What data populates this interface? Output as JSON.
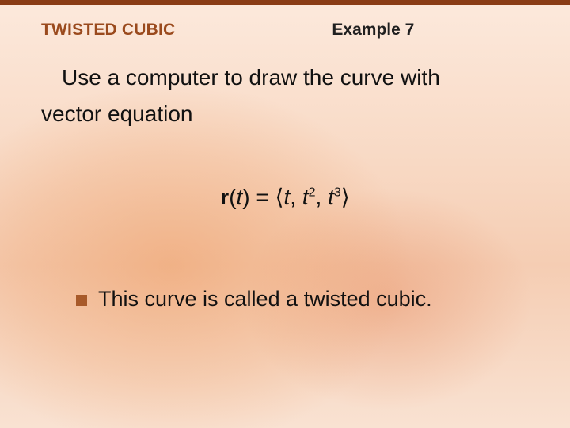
{
  "colors": {
    "topbar": "#8a3c16",
    "section_title": "#9a4a1d",
    "bullet": "#a85a2a",
    "text": "#111111",
    "bg_gradient_top": "#fce9dc",
    "bg_gradient_mid1": "#f8d9c4",
    "bg_gradient_mid2": "#f5cdb3",
    "bg_gradient_bottom": "#f9e2d2"
  },
  "header": {
    "section_title": "TWISTED CUBIC",
    "example_label": "Example 7"
  },
  "body": {
    "line1": "Use a computer to draw the curve with",
    "line2": "vector equation"
  },
  "equation": {
    "r_label": "r",
    "open_paren": "(",
    "var_t": "t",
    "close_paren": ")",
    "equals": " = ",
    "langle": "⟨",
    "comp1": "t",
    "sep": ", ",
    "comp2_base": "t",
    "comp2_exp": "2",
    "comp3_base": "t",
    "comp3_exp": "3",
    "rangle": "⟩"
  },
  "bullet": {
    "text": "This curve is called a twisted cubic."
  },
  "typography": {
    "header_fontsize_pt": 16,
    "body_fontsize_pt": 21,
    "equation_fontsize_pt": 21,
    "bullet_fontsize_pt": 20
  }
}
